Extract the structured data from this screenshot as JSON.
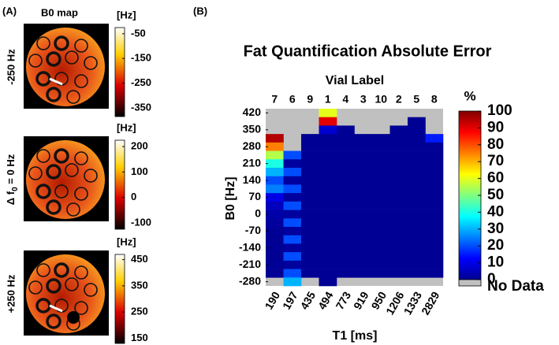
{
  "panel_a": {
    "label": "(A)",
    "title": "B0 map",
    "maps": [
      {
        "row_label": "-250 Hz",
        "unit": "[Hz]",
        "ylim": [
          -385,
          -25
        ],
        "yticks": [
          -50,
          -150,
          -250,
          -350
        ]
      },
      {
        "row_label_parts": [
          "Δ f",
          "0",
          " = 0 Hz"
        ],
        "unit": "[Hz]",
        "ylim": [
          -125,
          225
        ],
        "yticks": [
          200,
          100,
          0,
          -100
        ]
      },
      {
        "row_label": "+250 Hz",
        "unit": "[Hz]",
        "ylim": [
          130,
          470
        ],
        "yticks": [
          450,
          350,
          250,
          150
        ]
      }
    ]
  },
  "chart_data": {
    "type": "heatmap",
    "panel_label": "(B)",
    "title": "Fat Quantification Absolute Error",
    "top_axis_label": "Vial Label",
    "vial_labels": [
      "7",
      "6",
      "9",
      "1",
      "4",
      "3",
      "10",
      "2",
      "5",
      "8"
    ],
    "categories": [
      "190",
      "197",
      "435",
      "494",
      "773",
      "919",
      "950",
      "1206",
      "1333",
      "2829"
    ],
    "x_label": "T1 [ms]",
    "y_label": "B0 [Hz]",
    "y": [
      420,
      385,
      350,
      315,
      280,
      245,
      210,
      175,
      140,
      105,
      70,
      35,
      0,
      -35,
      -70,
      -105,
      -140,
      -175,
      -210,
      -245,
      -280
    ],
    "ylim": [
      -297.5,
      437.5
    ],
    "yticks": [
      420,
      350,
      280,
      210,
      140,
      70,
      0,
      -70,
      -140,
      -210,
      -280
    ],
    "z": [
      [
        null,
        null,
        null,
        95,
        75,
        55,
        40,
        30,
        20,
        25,
        10,
        6,
        4,
        3,
        2,
        2,
        2,
        2,
        2,
        2,
        null
      ],
      [
        null,
        null,
        null,
        null,
        null,
        20,
        3,
        20,
        3,
        20,
        3,
        20,
        3,
        20,
        3,
        20,
        3,
        20,
        3,
        20,
        30
      ],
      [
        null,
        null,
        null,
        2,
        2,
        2,
        2,
        2,
        2,
        2,
        2,
        2,
        2,
        2,
        2,
        2,
        2,
        2,
        2,
        2,
        null
      ],
      [
        60,
        90,
        8,
        2,
        2,
        2,
        2,
        2,
        2,
        2,
        2,
        2,
        2,
        2,
        2,
        2,
        2,
        2,
        2,
        2,
        2
      ],
      [
        null,
        null,
        2,
        2,
        2,
        2,
        2,
        2,
        2,
        2,
        2,
        2,
        2,
        2,
        2,
        2,
        2,
        2,
        2,
        2,
        null
      ],
      [
        null,
        null,
        null,
        2,
        2,
        2,
        2,
        2,
        2,
        2,
        2,
        2,
        2,
        2,
        2,
        2,
        2,
        2,
        2,
        2,
        null
      ],
      [
        null,
        null,
        null,
        2,
        2,
        2,
        2,
        2,
        2,
        2,
        2,
        2,
        2,
        2,
        2,
        2,
        2,
        2,
        2,
        2,
        null
      ],
      [
        null,
        null,
        2,
        2,
        2,
        2,
        2,
        2,
        2,
        2,
        2,
        2,
        2,
        2,
        2,
        2,
        2,
        2,
        2,
        2,
        null
      ],
      [
        null,
        2,
        2,
        2,
        2,
        2,
        2,
        2,
        2,
        2,
        2,
        2,
        2,
        2,
        2,
        2,
        2,
        2,
        2,
        2,
        null
      ],
      [
        null,
        null,
        null,
        15,
        2,
        2,
        2,
        2,
        2,
        2,
        2,
        2,
        2,
        2,
        2,
        2,
        2,
        2,
        2,
        2,
        null
      ]
    ],
    "colorbar": {
      "title": "%",
      "zlim": [
        0,
        100
      ],
      "ticks": [
        100,
        90,
        80,
        70,
        60,
        50,
        40,
        30,
        20,
        10,
        0
      ],
      "missing_label": "No Data"
    }
  }
}
